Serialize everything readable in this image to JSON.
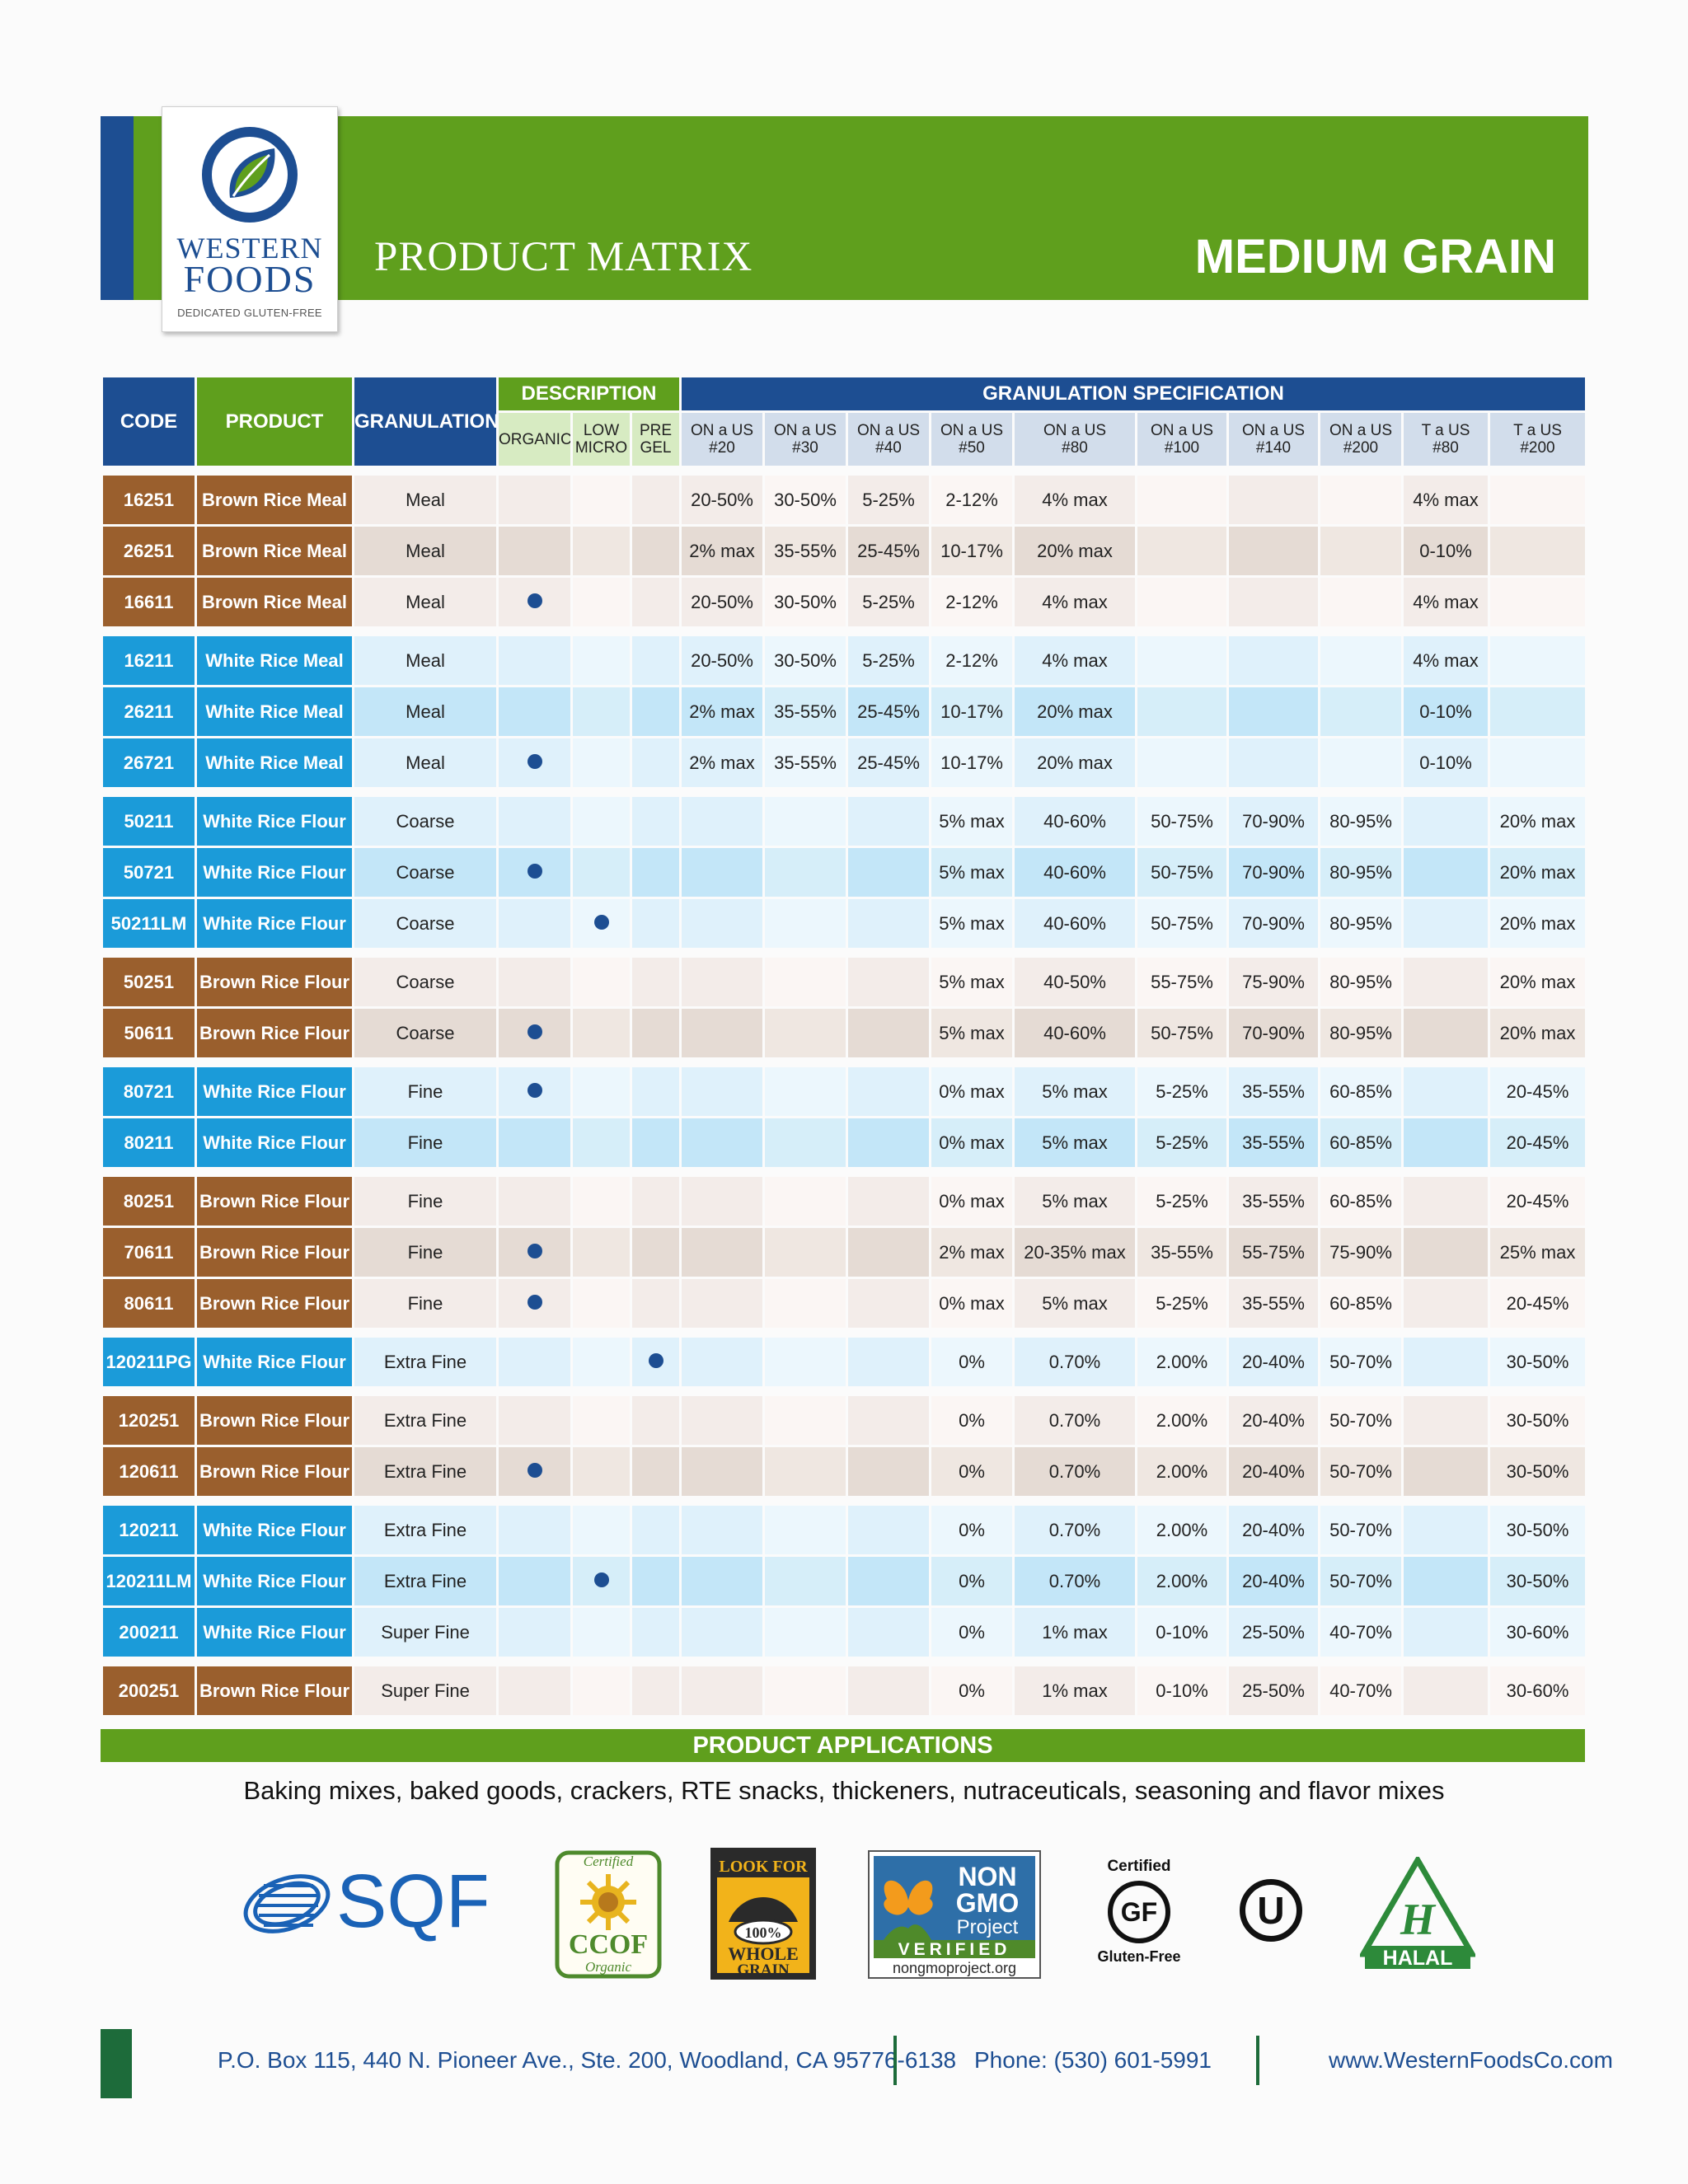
{
  "logo": {
    "word1": "WESTERN",
    "word2": "FOODS",
    "tagline": "DEDICATED GLUTEN-FREE"
  },
  "header": {
    "title": "PRODUCT MATRIX",
    "category": "MEDIUM GRAIN"
  },
  "table": {
    "headers": {
      "code": "CODE",
      "product": "PRODUCT",
      "granulation": "GRANULATION",
      "description": "DESCRIPTION",
      "spec": "GRANULATION SPECIFICATION",
      "organic": "ORGANIC",
      "low_micro": [
        "LOW",
        "MICRO"
      ],
      "pre_gel": [
        "PRE",
        "GEL"
      ],
      "sieves": [
        [
          "ON a US",
          "#20"
        ],
        [
          "ON a US",
          "#30"
        ],
        [
          "ON a US",
          "#40"
        ],
        [
          "ON a US",
          "#50"
        ],
        [
          "ON a US",
          "#80"
        ],
        [
          "ON a US",
          "#100"
        ],
        [
          "ON a US",
          "#140"
        ],
        [
          "ON a US",
          "#200"
        ],
        [
          "T a US",
          "#80"
        ],
        [
          "T a US",
          "#200"
        ]
      ]
    },
    "groups": [
      {
        "type": "brown",
        "rows": [
          {
            "code": "16251",
            "product": "Brown Rice Meal",
            "granulation": "Meal",
            "organic": false,
            "low_micro": false,
            "pre_gel": false,
            "specs": [
              "20-50%",
              "30-50%",
              "5-25%",
              "2-12%",
              "4% max",
              "",
              "",
              "",
              "4% max",
              ""
            ]
          },
          {
            "code": "26251",
            "product": "Brown Rice Meal",
            "granulation": "Meal",
            "organic": false,
            "low_micro": false,
            "pre_gel": false,
            "specs": [
              "2% max",
              "35-55%",
              "25-45%",
              "10-17%",
              "20% max",
              "",
              "",
              "",
              "0-10%",
              ""
            ]
          },
          {
            "code": "16611",
            "product": "Brown Rice Meal",
            "granulation": "Meal",
            "organic": true,
            "low_micro": false,
            "pre_gel": false,
            "specs": [
              "20-50%",
              "30-50%",
              "5-25%",
              "2-12%",
              "4% max",
              "",
              "",
              "",
              "4% max",
              ""
            ]
          }
        ]
      },
      {
        "type": "white",
        "rows": [
          {
            "code": "16211",
            "product": "White Rice Meal",
            "granulation": "Meal",
            "organic": false,
            "low_micro": false,
            "pre_gel": false,
            "specs": [
              "20-50%",
              "30-50%",
              "5-25%",
              "2-12%",
              "4% max",
              "",
              "",
              "",
              "4% max",
              ""
            ]
          },
          {
            "code": "26211",
            "product": "White Rice Meal",
            "granulation": "Meal",
            "organic": false,
            "low_micro": false,
            "pre_gel": false,
            "specs": [
              "2% max",
              "35-55%",
              "25-45%",
              "10-17%",
              "20% max",
              "",
              "",
              "",
              "0-10%",
              ""
            ]
          },
          {
            "code": "26721",
            "product": "White Rice Meal",
            "granulation": "Meal",
            "organic": true,
            "low_micro": false,
            "pre_gel": false,
            "specs": [
              "2% max",
              "35-55%",
              "25-45%",
              "10-17%",
              "20% max",
              "",
              "",
              "",
              "0-10%",
              ""
            ]
          }
        ]
      },
      {
        "type": "white",
        "rows": [
          {
            "code": "50211",
            "product": "White Rice Flour",
            "granulation": "Coarse",
            "organic": false,
            "low_micro": false,
            "pre_gel": false,
            "specs": [
              "",
              "",
              "",
              "5% max",
              "40-60%",
              "50-75%",
              "70-90%",
              "80-95%",
              "",
              "20% max"
            ]
          },
          {
            "code": "50721",
            "product": "White Rice Flour",
            "granulation": "Coarse",
            "organic": true,
            "low_micro": false,
            "pre_gel": false,
            "specs": [
              "",
              "",
              "",
              "5% max",
              "40-60%",
              "50-75%",
              "70-90%",
              "80-95%",
              "",
              "20% max"
            ]
          },
          {
            "code": "50211LM",
            "product": "White Rice Flour",
            "granulation": "Coarse",
            "organic": false,
            "low_micro": true,
            "pre_gel": false,
            "specs": [
              "",
              "",
              "",
              "5% max",
              "40-60%",
              "50-75%",
              "70-90%",
              "80-95%",
              "",
              "20% max"
            ]
          }
        ]
      },
      {
        "type": "brown",
        "rows": [
          {
            "code": "50251",
            "product": "Brown Rice Flour",
            "granulation": "Coarse",
            "organic": false,
            "low_micro": false,
            "pre_gel": false,
            "specs": [
              "",
              "",
              "",
              "5% max",
              "40-50%",
              "55-75%",
              "75-90%",
              "80-95%",
              "",
              "20% max"
            ]
          },
          {
            "code": "50611",
            "product": "Brown Rice Flour",
            "granulation": "Coarse",
            "organic": true,
            "low_micro": false,
            "pre_gel": false,
            "specs": [
              "",
              "",
              "",
              "5% max",
              "40-60%",
              "50-75%",
              "70-90%",
              "80-95%",
              "",
              "20% max"
            ]
          }
        ]
      },
      {
        "type": "white",
        "rows": [
          {
            "code": "80721",
            "product": "White Rice Flour",
            "granulation": "Fine",
            "organic": true,
            "low_micro": false,
            "pre_gel": false,
            "specs": [
              "",
              "",
              "",
              "0% max",
              "5% max",
              "5-25%",
              "35-55%",
              "60-85%",
              "",
              "20-45%"
            ]
          },
          {
            "code": "80211",
            "product": "White Rice Flour",
            "granulation": "Fine",
            "organic": false,
            "low_micro": false,
            "pre_gel": false,
            "specs": [
              "",
              "",
              "",
              "0% max",
              "5% max",
              "5-25%",
              "35-55%",
              "60-85%",
              "",
              "20-45%"
            ]
          }
        ]
      },
      {
        "type": "brown",
        "rows": [
          {
            "code": "80251",
            "product": "Brown Rice Flour",
            "granulation": "Fine",
            "organic": false,
            "low_micro": false,
            "pre_gel": false,
            "specs": [
              "",
              "",
              "",
              "0% max",
              "5% max",
              "5-25%",
              "35-55%",
              "60-85%",
              "",
              "20-45%"
            ]
          },
          {
            "code": "70611",
            "product": "Brown Rice Flour",
            "granulation": "Fine",
            "organic": true,
            "low_micro": false,
            "pre_gel": false,
            "specs": [
              "",
              "",
              "",
              "2% max",
              "20-35% max",
              "35-55%",
              "55-75%",
              "75-90%",
              "",
              "25% max"
            ]
          },
          {
            "code": "80611",
            "product": "Brown Rice Flour",
            "granulation": "Fine",
            "organic": true,
            "low_micro": false,
            "pre_gel": false,
            "specs": [
              "",
              "",
              "",
              "0% max",
              "5% max",
              "5-25%",
              "35-55%",
              "60-85%",
              "",
              "20-45%"
            ]
          }
        ]
      },
      {
        "type": "white",
        "rows": [
          {
            "code": "120211PG",
            "product": "White Rice Flour",
            "granulation": "Extra Fine",
            "organic": false,
            "low_micro": false,
            "pre_gel": true,
            "specs": [
              "",
              "",
              "",
              "0%",
              "0.70%",
              "2.00%",
              "20-40%",
              "50-70%",
              "",
              "30-50%"
            ]
          }
        ]
      },
      {
        "type": "brown",
        "rows": [
          {
            "code": "120251",
            "product": "Brown Rice Flour",
            "granulation": "Extra Fine",
            "organic": false,
            "low_micro": false,
            "pre_gel": false,
            "specs": [
              "",
              "",
              "",
              "0%",
              "0.70%",
              "2.00%",
              "20-40%",
              "50-70%",
              "",
              "30-50%"
            ]
          },
          {
            "code": "120611",
            "product": "Brown Rice Flour",
            "granulation": "Extra Fine",
            "organic": true,
            "low_micro": false,
            "pre_gel": false,
            "specs": [
              "",
              "",
              "",
              "0%",
              "0.70%",
              "2.00%",
              "20-40%",
              "50-70%",
              "",
              "30-50%"
            ]
          }
        ]
      },
      {
        "type": "white",
        "rows": [
          {
            "code": "120211",
            "product": "White Rice Flour",
            "granulation": "Extra Fine",
            "organic": false,
            "low_micro": false,
            "pre_gel": false,
            "specs": [
              "",
              "",
              "",
              "0%",
              "0.70%",
              "2.00%",
              "20-40%",
              "50-70%",
              "",
              "30-50%"
            ]
          },
          {
            "code": "120211LM",
            "product": "White Rice Flour",
            "granulation": "Extra Fine",
            "organic": false,
            "low_micro": true,
            "pre_gel": false,
            "specs": [
              "",
              "",
              "",
              "0%",
              "0.70%",
              "2.00%",
              "20-40%",
              "50-70%",
              "",
              "30-50%"
            ]
          },
          {
            "code": "200211",
            "product": "White Rice Flour",
            "granulation": "Super Fine",
            "organic": false,
            "low_micro": false,
            "pre_gel": false,
            "specs": [
              "",
              "",
              "",
              "0%",
              "1% max",
              "0-10%",
              "25-50%",
              "40-70%",
              "",
              "30-60%"
            ]
          }
        ]
      },
      {
        "type": "brown",
        "rows": [
          {
            "code": "200251",
            "product": "Brown Rice Flour",
            "granulation": "Super Fine",
            "organic": false,
            "low_micro": false,
            "pre_gel": false,
            "specs": [
              "",
              "",
              "",
              "0%",
              "1% max",
              "0-10%",
              "25-50%",
              "40-70%",
              "",
              "30-60%"
            ]
          }
        ]
      }
    ]
  },
  "applications": {
    "title": "PRODUCT APPLICATIONS",
    "text": "Baking mixes, baked goods, crackers, RTE snacks, thickeners, nutraceuticals, seasoning and flavor mixes"
  },
  "certifications": {
    "sqf": "SQF",
    "ccof": {
      "top": "Certified",
      "name": "CCOF",
      "bottom": "Organic"
    },
    "whole_grain": {
      "top": "LOOK FOR",
      "mid": "100%",
      "bottom1": "WHOLE",
      "bottom2": "GRAIN"
    },
    "non_gmo": {
      "l1": "NON",
      "l2": "GMO",
      "l3": "Project",
      "verified": "VERIFIED",
      "url": "nongmoproject.org"
    },
    "gluten_free": {
      "top": "Certified",
      "mark": "GF",
      "bottom": "Gluten-Free"
    },
    "ou": "U",
    "halal": {
      "mark": "H",
      "word": "HALAL"
    }
  },
  "footer": {
    "address": "P.O. Box 115, 440 N. Pioneer Ave., Ste. 200, Woodland, CA 95776-6138",
    "phone": "Phone: (530) 601-5991",
    "website": "www.WesternFoodsCo.com"
  },
  "colors": {
    "green": "#5f9f1d",
    "navy": "#1d4e92",
    "brown": "#9a5f2d",
    "sky": "#1b9bd9",
    "dark_green": "#1d6b3a"
  }
}
